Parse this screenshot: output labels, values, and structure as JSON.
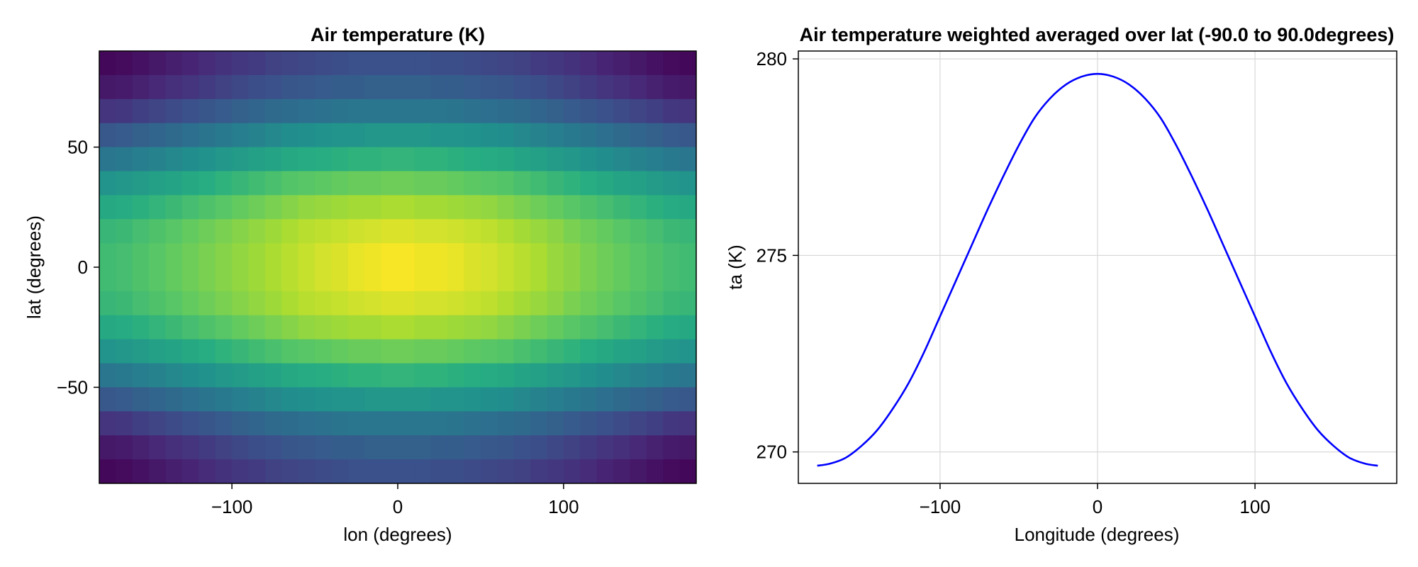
{
  "chart_data": [
    {
      "type": "heatmap",
      "title": "Air temperature (K)",
      "xlabel": "lon (degrees)",
      "ylabel": "lat (degrees)",
      "xlim": [
        -180,
        180
      ],
      "ylim": [
        -90,
        90
      ],
      "xticks": [
        -100,
        0,
        100
      ],
      "yticks": [
        -50,
        0,
        50
      ],
      "colormap": "viridis",
      "grid": false,
      "field": {
        "lon_centers": [
          -175,
          -165,
          -155,
          -145,
          -135,
          -125,
          -115,
          -105,
          -95,
          -85,
          -75,
          -65,
          -55,
          -45,
          -35,
          -25,
          -15,
          -5,
          5,
          15,
          25,
          35,
          45,
          55,
          65,
          75,
          85,
          95,
          105,
          115,
          125,
          135,
          145,
          155,
          165,
          175
        ],
        "lat_centers": [
          85,
          75,
          65,
          55,
          45,
          35,
          25,
          15,
          5,
          -5,
          -15,
          -25,
          -35,
          -45,
          -55,
          -65,
          -75,
          -85
        ],
        "normalized_values": [
          [
            0.02,
            0.03,
            0.05,
            0.07,
            0.09,
            0.11,
            0.13,
            0.15,
            0.17,
            0.18,
            0.2,
            0.21,
            0.22,
            0.23,
            0.24,
            0.25,
            0.25,
            0.25,
            0.25,
            0.25,
            0.24,
            0.24,
            0.23,
            0.22,
            0.21,
            0.2,
            0.18,
            0.17,
            0.15,
            0.13,
            0.11,
            0.09,
            0.07,
            0.05,
            0.03,
            0.02
          ],
          [
            0.07,
            0.08,
            0.1,
            0.12,
            0.14,
            0.16,
            0.18,
            0.2,
            0.22,
            0.24,
            0.25,
            0.27,
            0.28,
            0.29,
            0.3,
            0.3,
            0.31,
            0.31,
            0.31,
            0.31,
            0.3,
            0.3,
            0.29,
            0.28,
            0.27,
            0.25,
            0.24,
            0.22,
            0.2,
            0.18,
            0.16,
            0.14,
            0.12,
            0.1,
            0.08,
            0.07
          ],
          [
            0.16,
            0.17,
            0.19,
            0.21,
            0.23,
            0.25,
            0.27,
            0.29,
            0.31,
            0.33,
            0.35,
            0.36,
            0.37,
            0.38,
            0.39,
            0.4,
            0.4,
            0.4,
            0.4,
            0.4,
            0.4,
            0.39,
            0.38,
            0.37,
            0.36,
            0.35,
            0.33,
            0.31,
            0.29,
            0.27,
            0.25,
            0.23,
            0.21,
            0.19,
            0.17,
            0.16
          ],
          [
            0.28,
            0.29,
            0.31,
            0.33,
            0.35,
            0.37,
            0.39,
            0.41,
            0.43,
            0.45,
            0.47,
            0.49,
            0.5,
            0.51,
            0.52,
            0.52,
            0.53,
            0.53,
            0.53,
            0.53,
            0.52,
            0.52,
            0.51,
            0.5,
            0.49,
            0.47,
            0.45,
            0.43,
            0.41,
            0.39,
            0.37,
            0.35,
            0.33,
            0.31,
            0.29,
            0.28
          ],
          [
            0.4,
            0.41,
            0.43,
            0.45,
            0.47,
            0.49,
            0.51,
            0.53,
            0.55,
            0.57,
            0.59,
            0.61,
            0.62,
            0.63,
            0.64,
            0.65,
            0.65,
            0.66,
            0.66,
            0.65,
            0.65,
            0.64,
            0.63,
            0.62,
            0.61,
            0.59,
            0.57,
            0.55,
            0.53,
            0.51,
            0.49,
            0.47,
            0.45,
            0.43,
            0.41,
            0.4
          ],
          [
            0.52,
            0.53,
            0.55,
            0.57,
            0.59,
            0.61,
            0.63,
            0.65,
            0.67,
            0.69,
            0.71,
            0.73,
            0.74,
            0.75,
            0.76,
            0.77,
            0.77,
            0.78,
            0.78,
            0.77,
            0.77,
            0.76,
            0.75,
            0.74,
            0.73,
            0.71,
            0.69,
            0.67,
            0.65,
            0.63,
            0.61,
            0.59,
            0.57,
            0.55,
            0.53,
            0.52
          ],
          [
            0.61,
            0.62,
            0.64,
            0.66,
            0.68,
            0.7,
            0.72,
            0.74,
            0.76,
            0.78,
            0.8,
            0.82,
            0.84,
            0.85,
            0.86,
            0.87,
            0.87,
            0.88,
            0.88,
            0.87,
            0.87,
            0.86,
            0.85,
            0.84,
            0.82,
            0.8,
            0.78,
            0.76,
            0.74,
            0.72,
            0.7,
            0.68,
            0.66,
            0.64,
            0.62,
            0.61
          ],
          [
            0.67,
            0.68,
            0.7,
            0.72,
            0.74,
            0.76,
            0.78,
            0.8,
            0.82,
            0.84,
            0.86,
            0.88,
            0.9,
            0.91,
            0.92,
            0.93,
            0.94,
            0.95,
            0.95,
            0.94,
            0.94,
            0.93,
            0.92,
            0.91,
            0.89,
            0.87,
            0.85,
            0.83,
            0.8,
            0.78,
            0.76,
            0.74,
            0.72,
            0.7,
            0.68,
            0.67
          ],
          [
            0.69,
            0.7,
            0.72,
            0.74,
            0.76,
            0.78,
            0.8,
            0.82,
            0.84,
            0.86,
            0.88,
            0.9,
            0.92,
            0.94,
            0.95,
            0.97,
            0.98,
            0.99,
            0.99,
            0.98,
            0.98,
            0.97,
            0.95,
            0.94,
            0.92,
            0.9,
            0.88,
            0.85,
            0.83,
            0.8,
            0.78,
            0.76,
            0.74,
            0.72,
            0.7,
            0.69
          ],
          [
            0.69,
            0.7,
            0.72,
            0.74,
            0.76,
            0.78,
            0.8,
            0.82,
            0.84,
            0.86,
            0.88,
            0.9,
            0.92,
            0.94,
            0.95,
            0.97,
            0.98,
            0.99,
            0.99,
            0.98,
            0.98,
            0.97,
            0.95,
            0.94,
            0.92,
            0.9,
            0.88,
            0.85,
            0.83,
            0.8,
            0.78,
            0.76,
            0.74,
            0.72,
            0.7,
            0.69
          ],
          [
            0.67,
            0.68,
            0.7,
            0.72,
            0.74,
            0.76,
            0.78,
            0.8,
            0.82,
            0.84,
            0.86,
            0.88,
            0.9,
            0.91,
            0.92,
            0.93,
            0.94,
            0.95,
            0.95,
            0.94,
            0.94,
            0.93,
            0.92,
            0.91,
            0.89,
            0.87,
            0.85,
            0.83,
            0.8,
            0.78,
            0.76,
            0.74,
            0.72,
            0.7,
            0.68,
            0.67
          ],
          [
            0.61,
            0.62,
            0.64,
            0.66,
            0.68,
            0.7,
            0.72,
            0.74,
            0.76,
            0.78,
            0.8,
            0.82,
            0.84,
            0.85,
            0.86,
            0.87,
            0.87,
            0.88,
            0.88,
            0.87,
            0.87,
            0.86,
            0.85,
            0.84,
            0.82,
            0.8,
            0.78,
            0.76,
            0.74,
            0.72,
            0.7,
            0.68,
            0.66,
            0.64,
            0.62,
            0.61
          ],
          [
            0.52,
            0.53,
            0.55,
            0.57,
            0.59,
            0.61,
            0.63,
            0.65,
            0.67,
            0.69,
            0.71,
            0.73,
            0.74,
            0.75,
            0.76,
            0.77,
            0.77,
            0.78,
            0.78,
            0.77,
            0.77,
            0.76,
            0.75,
            0.74,
            0.73,
            0.71,
            0.69,
            0.67,
            0.65,
            0.63,
            0.61,
            0.59,
            0.57,
            0.55,
            0.53,
            0.52
          ],
          [
            0.4,
            0.41,
            0.43,
            0.45,
            0.47,
            0.49,
            0.51,
            0.53,
            0.55,
            0.57,
            0.59,
            0.61,
            0.62,
            0.63,
            0.64,
            0.65,
            0.65,
            0.66,
            0.66,
            0.65,
            0.65,
            0.64,
            0.63,
            0.62,
            0.61,
            0.59,
            0.57,
            0.55,
            0.53,
            0.51,
            0.49,
            0.47,
            0.45,
            0.43,
            0.41,
            0.4
          ],
          [
            0.28,
            0.29,
            0.31,
            0.33,
            0.35,
            0.37,
            0.39,
            0.41,
            0.43,
            0.45,
            0.47,
            0.49,
            0.5,
            0.51,
            0.52,
            0.52,
            0.53,
            0.53,
            0.53,
            0.53,
            0.52,
            0.52,
            0.51,
            0.5,
            0.49,
            0.47,
            0.45,
            0.43,
            0.41,
            0.39,
            0.37,
            0.35,
            0.33,
            0.31,
            0.29,
            0.28
          ],
          [
            0.16,
            0.17,
            0.19,
            0.21,
            0.23,
            0.25,
            0.27,
            0.29,
            0.31,
            0.33,
            0.35,
            0.36,
            0.37,
            0.38,
            0.39,
            0.4,
            0.4,
            0.4,
            0.4,
            0.4,
            0.4,
            0.39,
            0.38,
            0.37,
            0.36,
            0.35,
            0.33,
            0.31,
            0.29,
            0.27,
            0.25,
            0.23,
            0.21,
            0.19,
            0.17,
            0.16
          ],
          [
            0.07,
            0.08,
            0.1,
            0.12,
            0.14,
            0.16,
            0.18,
            0.2,
            0.22,
            0.24,
            0.25,
            0.27,
            0.28,
            0.29,
            0.3,
            0.3,
            0.31,
            0.31,
            0.31,
            0.31,
            0.3,
            0.3,
            0.29,
            0.28,
            0.27,
            0.25,
            0.24,
            0.22,
            0.2,
            0.18,
            0.16,
            0.14,
            0.12,
            0.1,
            0.08,
            0.07
          ],
          [
            0.02,
            0.03,
            0.05,
            0.07,
            0.09,
            0.11,
            0.13,
            0.15,
            0.17,
            0.18,
            0.2,
            0.21,
            0.22,
            0.23,
            0.24,
            0.25,
            0.25,
            0.25,
            0.25,
            0.25,
            0.24,
            0.24,
            0.23,
            0.22,
            0.21,
            0.2,
            0.18,
            0.17,
            0.15,
            0.13,
            0.11,
            0.09,
            0.07,
            0.05,
            0.03,
            0.02
          ]
        ]
      }
    },
    {
      "type": "line",
      "title": "Air temperature weighted averaged over lat (-90.0 to 90.0degrees)",
      "xlabel": "Longitude (degrees)",
      "ylabel": "ta (K)",
      "xlim": [
        -190,
        190
      ],
      "ylim": [
        269.2,
        280.2
      ],
      "xticks": [
        -100,
        0,
        100
      ],
      "yticks": [
        270,
        275,
        280
      ],
      "grid": true,
      "series": [
        {
          "color": "#0000ff",
          "x": [
            -178,
            -170,
            -160,
            -150,
            -140,
            -130,
            -120,
            -110,
            -100,
            -90,
            -80,
            -70,
            -60,
            -50,
            -40,
            -30,
            -20,
            -10,
            0,
            10,
            20,
            30,
            40,
            50,
            60,
            70,
            80,
            90,
            100,
            110,
            120,
            130,
            140,
            150,
            160,
            170,
            178
          ],
          "y": [
            269.65,
            269.7,
            269.85,
            270.15,
            270.55,
            271.1,
            271.75,
            272.55,
            273.45,
            274.35,
            275.25,
            276.15,
            277.0,
            277.8,
            278.5,
            279.0,
            279.35,
            279.55,
            279.62,
            279.55,
            279.35,
            279.0,
            278.5,
            277.8,
            277.0,
            276.15,
            275.25,
            274.35,
            273.45,
            272.55,
            271.75,
            271.1,
            270.55,
            270.15,
            269.85,
            269.7,
            269.65
          ]
        }
      ]
    }
  ]
}
